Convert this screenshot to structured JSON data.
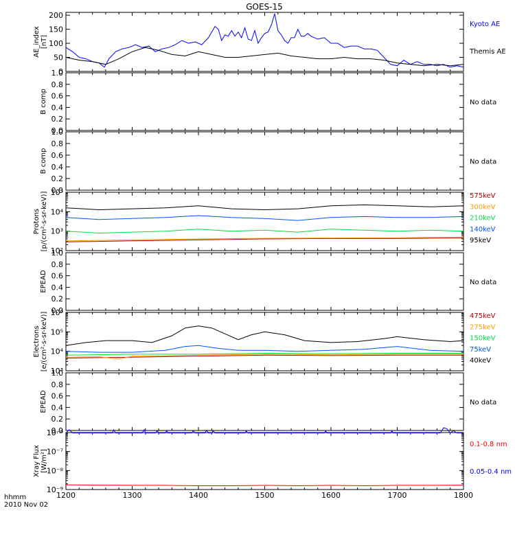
{
  "title": "GOES-15",
  "footer": {
    "line1": "hhmm",
    "line2": "2010 Nov 02"
  },
  "x_axis": {
    "ticks": [
      1200,
      1300,
      1400,
      1500,
      1600,
      1700,
      1800
    ],
    "range": [
      1200,
      1800
    ]
  },
  "no_data_text": "No data",
  "chart_data": [
    {
      "type": "line",
      "ylabel_lines": [
        "AE_index",
        "[nT]"
      ],
      "ylim": [
        0,
        210
      ],
      "yticks": [
        "0",
        "50",
        "100",
        "150",
        "200"
      ],
      "ytick_values": [
        0,
        50,
        100,
        150,
        200
      ],
      "scale": "linear",
      "series": [
        {
          "name": "Kyoto AE",
          "color": "#0000ff",
          "x": [
            1200,
            1210,
            1220,
            1230,
            1240,
            1250,
            1258,
            1265,
            1275,
            1285,
            1295,
            1305,
            1315,
            1325,
            1335,
            1345,
            1355,
            1365,
            1375,
            1385,
            1395,
            1405,
            1415,
            1425,
            1430,
            1435,
            1440,
            1445,
            1450,
            1455,
            1460,
            1465,
            1470,
            1475,
            1480,
            1485,
            1490,
            1495,
            1500,
            1505,
            1510,
            1515,
            1520,
            1525,
            1530,
            1535,
            1540,
            1545,
            1550,
            1555,
            1560,
            1565,
            1570,
            1575,
            1580,
            1590,
            1600,
            1610,
            1620,
            1630,
            1640,
            1650,
            1660,
            1670,
            1680,
            1690,
            1700,
            1710,
            1720,
            1730,
            1740,
            1750,
            1760,
            1770,
            1780,
            1790,
            1800
          ],
          "y": [
            85,
            70,
            50,
            45,
            35,
            30,
            15,
            45,
            70,
            80,
            85,
            95,
            85,
            90,
            70,
            80,
            85,
            95,
            110,
            100,
            105,
            95,
            120,
            160,
            150,
            110,
            130,
            125,
            145,
            125,
            140,
            120,
            155,
            115,
            110,
            145,
            100,
            120,
            135,
            140,
            165,
            205,
            145,
            130,
            110,
            100,
            120,
            120,
            150,
            125,
            125,
            135,
            125,
            120,
            115,
            120,
            100,
            100,
            85,
            90,
            90,
            80,
            80,
            75,
            50,
            25,
            20,
            40,
            25,
            35,
            25,
            25,
            20,
            25,
            15,
            20,
            15
          ]
        },
        {
          "name": "Themis AE",
          "color": "#000000",
          "x": [
            1200,
            1220,
            1240,
            1260,
            1280,
            1300,
            1320,
            1340,
            1360,
            1380,
            1400,
            1420,
            1440,
            1460,
            1480,
            1500,
            1520,
            1540,
            1560,
            1580,
            1600,
            1620,
            1640,
            1660,
            1680,
            1700,
            1720,
            1740,
            1760,
            1780,
            1800
          ],
          "y": [
            50,
            40,
            35,
            25,
            45,
            70,
            85,
            75,
            60,
            55,
            70,
            60,
            50,
            50,
            55,
            60,
            65,
            55,
            50,
            45,
            45,
            50,
            45,
            45,
            40,
            30,
            25,
            20,
            25,
            20,
            25
          ]
        }
      ],
      "legend": [
        "Kyoto AE",
        "Themis AE"
      ]
    },
    {
      "type": "line",
      "ylabel_lines": [
        "B comp"
      ],
      "ylim": [
        0,
        1.0
      ],
      "yticks": [
        "0.0",
        "0.2",
        "0.4",
        "0.6",
        "0.8",
        "1.0"
      ],
      "ytick_values": [
        0,
        0.2,
        0.4,
        0.6,
        0.8,
        1.0
      ],
      "scale": "linear",
      "series": [],
      "no_data": true
    },
    {
      "type": "line",
      "ylabel_lines": [
        "B comp"
      ],
      "ylim": [
        0,
        1.0
      ],
      "yticks": [
        "0.0",
        "0.2",
        "0.4",
        "0.6",
        "0.8",
        "1.0"
      ],
      "ytick_values": [
        0,
        0.2,
        0.4,
        0.6,
        0.8,
        1.0
      ],
      "scale": "linear",
      "series": [],
      "no_data": true
    },
    {
      "type": "line",
      "ylabel_lines": [
        "Protons",
        "[p/(cm²-s-sr-keV)]"
      ],
      "ylim": [
        2,
        5
      ],
      "scale": "log",
      "ytick_exponents": [
        2,
        3,
        4,
        5
      ],
      "series": [
        {
          "name": "575keV",
          "color": "#b00000",
          "x": [
            1200,
            1300,
            1400,
            1500,
            1600,
            1700,
            1800
          ],
          "y": [
            2.45,
            2.5,
            2.55,
            2.6,
            2.62,
            2.62,
            2.65
          ]
        },
        {
          "name": "300keV",
          "color": "#ff9900",
          "x": [
            1200,
            1300,
            1400,
            1500,
            1600,
            1700,
            1800
          ],
          "y": [
            2.5,
            2.55,
            2.6,
            2.63,
            2.65,
            2.66,
            2.7
          ]
        },
        {
          "name": "210keV",
          "color": "#00dd44",
          "x": [
            1200,
            1250,
            1300,
            1350,
            1400,
            1450,
            1500,
            1550,
            1600,
            1650,
            1700,
            1750,
            1800
          ],
          "y": [
            3.0,
            2.9,
            2.95,
            3.0,
            3.1,
            3.0,
            3.05,
            2.95,
            3.1,
            3.05,
            3.0,
            3.05,
            3.0
          ]
        },
        {
          "name": "140keV",
          "color": "#0055ff",
          "x": [
            1200,
            1250,
            1300,
            1350,
            1400,
            1450,
            1500,
            1550,
            1600,
            1650,
            1700,
            1750,
            1800
          ],
          "y": [
            3.7,
            3.6,
            3.65,
            3.7,
            3.8,
            3.7,
            3.65,
            3.55,
            3.7,
            3.75,
            3.7,
            3.7,
            3.75
          ]
        },
        {
          "name": "95keV",
          "color": "#000000",
          "x": [
            1200,
            1250,
            1300,
            1350,
            1400,
            1450,
            1500,
            1550,
            1600,
            1650,
            1700,
            1750,
            1800
          ],
          "y": [
            4.2,
            4.1,
            4.15,
            4.2,
            4.3,
            4.15,
            4.1,
            4.15,
            4.3,
            4.35,
            4.3,
            4.25,
            4.3
          ]
        }
      ],
      "legend": [
        "575keV",
        "300keV",
        "210keV",
        "140keV",
        "95keV"
      ]
    },
    {
      "type": "line",
      "ylabel_lines": [
        "EPEAD"
      ],
      "ylim": [
        0,
        1.0
      ],
      "yticks": [
        "0.0",
        "0.2",
        "0.4",
        "0.6",
        "0.8",
        "1.0"
      ],
      "ytick_values": [
        0,
        0.2,
        0.4,
        0.6,
        0.8,
        1.0
      ],
      "scale": "linear",
      "series": [],
      "no_data": true
    },
    {
      "type": "line",
      "ylabel_lines": [
        "Electrons",
        "[e/(cm²-s-sr-keV)]"
      ],
      "ylim": [
        3,
        6
      ],
      "scale": "log",
      "ytick_exponents": [
        3,
        4,
        5,
        6
      ],
      "series": [
        {
          "name": "475keV",
          "color": "#b00000",
          "x": [
            1200,
            1300,
            1400,
            1500,
            1600,
            1700,
            1800
          ],
          "y": [
            3.65,
            3.7,
            3.75,
            3.8,
            3.78,
            3.8,
            3.8
          ]
        },
        {
          "name": "275keV",
          "color": "#ff9900",
          "x": [
            1200,
            1250,
            1280,
            1300,
            1400,
            1500,
            1600,
            1700,
            1800
          ],
          "y": [
            3.7,
            3.72,
            3.6,
            3.75,
            3.8,
            3.85,
            3.82,
            3.85,
            3.85
          ]
        },
        {
          "name": "150keV",
          "color": "#00dd44",
          "x": [
            1200,
            1300,
            1400,
            1500,
            1600,
            1700,
            1800
          ],
          "y": [
            3.8,
            3.85,
            3.85,
            3.9,
            3.88,
            3.9,
            3.9
          ]
        },
        {
          "name": "75keV",
          "color": "#0055ff",
          "x": [
            1200,
            1250,
            1300,
            1350,
            1380,
            1400,
            1430,
            1460,
            1500,
            1550,
            1600,
            1650,
            1700,
            1750,
            1800
          ],
          "y": [
            4.0,
            3.95,
            3.95,
            4.05,
            4.25,
            4.3,
            4.15,
            4.05,
            4.05,
            4.0,
            4.05,
            4.1,
            4.25,
            4.05,
            4.0
          ]
        },
        {
          "name": "40keV",
          "color": "#000000",
          "x": [
            1200,
            1230,
            1260,
            1300,
            1330,
            1360,
            1380,
            1400,
            1420,
            1440,
            1460,
            1480,
            1500,
            1530,
            1560,
            1600,
            1640,
            1680,
            1700,
            1740,
            1780,
            1800
          ],
          "y": [
            4.3,
            4.45,
            4.55,
            4.55,
            4.45,
            4.8,
            5.2,
            5.3,
            5.2,
            4.9,
            4.6,
            4.85,
            5.0,
            4.85,
            4.55,
            4.45,
            4.5,
            4.65,
            4.75,
            4.6,
            4.5,
            4.55
          ]
        }
      ],
      "legend": [
        "475keV",
        "275keV",
        "150keV",
        "75keV",
        "40keV"
      ]
    },
    {
      "type": "line",
      "ylabel_lines": [
        "EPEAD"
      ],
      "ylim": [
        0,
        1.0
      ],
      "yticks": [
        "0.0",
        "0.2",
        "0.4",
        "0.6",
        "0.8",
        "1.0"
      ],
      "ytick_values": [
        0,
        0.2,
        0.4,
        0.6,
        0.8,
        1.0
      ],
      "scale": "linear",
      "series": [],
      "no_data": true
    },
    {
      "type": "line",
      "ylabel_lines": [
        "Xray Flux",
        "[W/m²]"
      ],
      "ylim": [
        -9,
        -6
      ],
      "scale": "log",
      "ytick_exponents": [
        -9,
        -8,
        -7,
        -6
      ],
      "ytick_order": "reversed",
      "series": [
        {
          "name": "0.1-0.8 nm",
          "color": "#ff0000",
          "x": [
            1200,
            1250,
            1300,
            1350,
            1400,
            1450,
            1500,
            1550,
            1600,
            1650,
            1700,
            1750,
            1800
          ],
          "y": [
            -8.75,
            -8.77,
            -8.78,
            -8.78,
            -8.8,
            -8.8,
            -8.78,
            -8.8,
            -8.78,
            -8.8,
            -8.78,
            -8.78,
            -8.77
          ]
        },
        {
          "name": "0.05-0.4 nm",
          "color": "#0000ff",
          "x": [
            1200,
            1205,
            1210,
            1270,
            1272,
            1275,
            1315,
            1318,
            1320,
            1335,
            1338,
            1340,
            1350,
            1352,
            1354,
            1390,
            1392,
            1395,
            1410,
            1412,
            1415,
            1420,
            1422,
            1425,
            1470,
            1472,
            1475,
            1590,
            1592,
            1594,
            1690,
            1692,
            1694,
            1765,
            1770,
            1775,
            1780,
            1785,
            1790,
            1800
          ],
          "y": [
            -6.02,
            -5.85,
            -6.02,
            -6.02,
            -5.85,
            -6.02,
            -6.02,
            -5.85,
            -6.02,
            -6.02,
            -5.9,
            -6.02,
            -6.02,
            -5.9,
            -6.02,
            -6.02,
            -5.9,
            -6.02,
            -6.02,
            -5.88,
            -6.02,
            -6.02,
            -5.9,
            -6.02,
            -6.02,
            -5.92,
            -6.02,
            -6.02,
            -5.92,
            -6.02,
            -6.02,
            -5.92,
            -6.02,
            -6.02,
            -5.75,
            -5.8,
            -6.02,
            -5.9,
            -6.02,
            -6.02
          ]
        }
      ],
      "legend": [
        "0.1-0.8 nm",
        "0.05-0.4 nm"
      ]
    }
  ]
}
